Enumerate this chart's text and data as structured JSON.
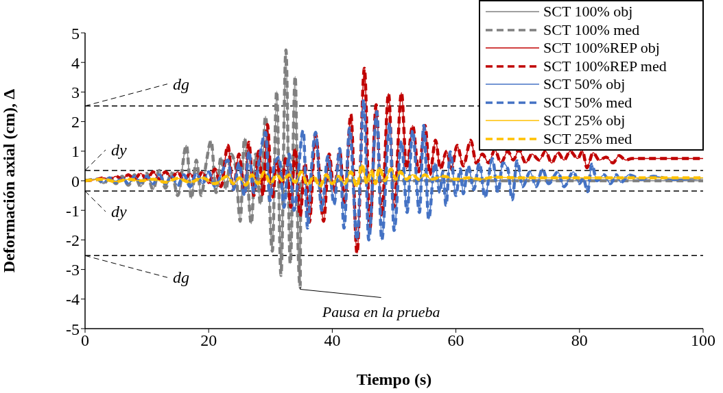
{
  "chart_data": {
    "type": "line",
    "xlabel": "Tiempo (s)",
    "ylabel": "Deformación axial (cm), Δ",
    "xlim": [
      0,
      100
    ],
    "xticks": [
      0,
      20,
      40,
      60,
      80,
      100
    ],
    "ylim": [
      -5,
      5
    ],
    "yticks": [
      -5,
      -4,
      -3,
      -2,
      -1,
      0,
      1,
      2,
      3,
      4,
      5
    ],
    "legend": "top right",
    "series": [
      {
        "name": "SCT 100% obj",
        "color": "#808080",
        "line_style": "solid",
        "x": [
          0,
          2,
          3,
          4,
          5,
          6,
          7,
          8,
          9,
          10,
          11,
          12,
          13,
          14,
          15,
          16.4,
          17.2,
          18,
          18.8,
          19.6,
          20.4,
          21.2,
          22,
          22.8,
          23.6,
          24.4,
          25.1,
          25.8,
          26.9,
          27.6,
          28.4,
          29.2,
          30.3,
          31,
          31.7,
          32.5,
          33.2,
          34,
          34.5,
          34.8,
          34.9,
          100
        ],
        "values": [
          0,
          0.05,
          -0.1,
          0.1,
          -0.1,
          0.15,
          -0.15,
          0.2,
          -0.2,
          0.25,
          -0.3,
          0.35,
          -0.25,
          0.3,
          -0.5,
          1.2,
          -0.6,
          0.7,
          -0.5,
          0.6,
          1.35,
          -0.4,
          0.8,
          -0.3,
          0.9,
          0.4,
          -1.37,
          1.44,
          -1.45,
          0.9,
          -0.8,
          2.18,
          -2.38,
          3.03,
          -3.2,
          4.42,
          -2.8,
          3.53,
          -2.5,
          -3.6,
          0,
          0
        ]
      },
      {
        "name": "SCT 100% med",
        "color": "#808080",
        "line_style": "dashed",
        "x": [
          0,
          2,
          3,
          4,
          5,
          6,
          7,
          8,
          9,
          10,
          11,
          12,
          13,
          14,
          15,
          16.4,
          17.2,
          18,
          18.8,
          19.6,
          20.4,
          21.2,
          22,
          22.8,
          23.6,
          24.4,
          25.1,
          25.8,
          26.9,
          27.6,
          28.4,
          29.2,
          30.3,
          31,
          31.7,
          32.5,
          33.2,
          34,
          34.5,
          34.8,
          34.9,
          100
        ],
        "values": [
          0,
          0.05,
          -0.1,
          0.1,
          -0.1,
          0.15,
          -0.15,
          0.2,
          -0.2,
          0.25,
          -0.3,
          0.35,
          -0.25,
          0.3,
          -0.5,
          1.2,
          -0.6,
          0.7,
          -0.5,
          0.6,
          1.35,
          -0.4,
          0.8,
          -0.3,
          0.9,
          0.4,
          -1.37,
          1.44,
          -1.45,
          0.9,
          -0.8,
          2.18,
          -2.38,
          3.03,
          -3.2,
          4.42,
          -2.8,
          3.53,
          -2.5,
          -3.6,
          0,
          0
        ]
      },
      {
        "name": "SCT 100%REP obj",
        "color": "#c00000",
        "line_style": "solid",
        "x": [
          0,
          2,
          3,
          4,
          5,
          6,
          7,
          8,
          9,
          10,
          11,
          12,
          13,
          14,
          15,
          16,
          17,
          18,
          19,
          20,
          21,
          22,
          23.1,
          24,
          24.9,
          25.8,
          26.5,
          27.3,
          28.1,
          28.8,
          29.5,
          30.3,
          31,
          31.8,
          32.5,
          33.3,
          34,
          34.8,
          35.6,
          36.3,
          37.3,
          38.6,
          39.5,
          40.3,
          41.2,
          42,
          43,
          44,
          45.2,
          46.1,
          47.1,
          48,
          49.1,
          50,
          51.2,
          52,
          53,
          54,
          55,
          55.8,
          56.7,
          57.5,
          58.5,
          59.3,
          60.2,
          61.2,
          62.4,
          63.3,
          64.3,
          65.3,
          66.3,
          67.3,
          68.4,
          69.3,
          70.2,
          71.3,
          72.3,
          73.5,
          74.5,
          75.5,
          76.5,
          77.5,
          78.5,
          79.7,
          80.5,
          81.2,
          82.2,
          83.2,
          84.3,
          85.4,
          86.4,
          87.5,
          88.5,
          100
        ],
        "values": [
          0,
          0.05,
          0.1,
          0.05,
          0.15,
          0.05,
          0.2,
          0.05,
          0.25,
          0.05,
          0.3,
          0.05,
          0.3,
          0.1,
          0.3,
          0,
          0.25,
          0,
          0.3,
          -0.1,
          0.4,
          -0.2,
          1.2,
          -0.3,
          0.9,
          -0.4,
          1.3,
          -0.5,
          1,
          -0.5,
          1.9,
          -0.6,
          0.7,
          -0.2,
          0.8,
          -0.9,
          1.1,
          -1.2,
          0.6,
          -1.4,
          1.56,
          -1.37,
          0.9,
          -0.4,
          1,
          -0.8,
          2.25,
          -2.45,
          3.8,
          -1.6,
          2.57,
          -1.2,
          2.95,
          -0.9,
          2.98,
          0.4,
          1.87,
          0.3,
          1.87,
          0.2,
          1.37,
          0.4,
          1,
          0.4,
          1.2,
          0.5,
          1.37,
          0.6,
          0.9,
          0.6,
          1.05,
          0.6,
          1,
          0.7,
          1.05,
          0.6,
          0.9,
          0.7,
          1,
          0.6,
          0.95,
          0.7,
          1,
          0.75,
          1,
          0.44,
          0.95,
          0.7,
          0.8,
          0.6,
          0.85,
          0.7,
          0.75,
          0.75
        ]
      },
      {
        "name": "SCT 100%REP med",
        "color": "#c00000",
        "line_style": "dashed",
        "x": [
          0,
          2,
          3,
          4,
          5,
          6,
          7,
          8,
          9,
          10,
          11,
          12,
          13,
          14,
          15,
          16,
          17,
          18,
          19,
          20,
          21,
          22,
          23.1,
          24,
          24.9,
          25.8,
          26.5,
          27.3,
          28.1,
          28.8,
          29.5,
          30.3,
          31,
          31.8,
          32.5,
          33.3,
          34,
          34.8,
          35.6,
          36.3,
          37.3,
          38.6,
          39.5,
          40.3,
          41.2,
          42,
          43,
          44,
          45.2,
          46.1,
          47.1,
          48,
          49.1,
          50,
          51.2,
          52,
          53,
          54,
          55,
          55.8,
          56.7,
          57.5,
          58.5,
          59.3,
          60.2,
          61.2,
          62.4,
          63.3,
          64.3,
          65.3,
          66.3,
          67.3,
          68.4,
          69.3,
          70.2,
          71.3,
          72.3,
          73.5,
          74.5,
          75.5,
          76.5,
          77.5,
          78.5,
          79.7,
          80.5,
          81.2,
          82.2,
          83.2,
          84.3,
          85.4,
          86.4,
          87.5,
          88.5,
          100
        ],
        "values": [
          0,
          0.05,
          0.1,
          0.05,
          0.15,
          0.05,
          0.2,
          0.05,
          0.25,
          0.05,
          0.3,
          0.05,
          0.3,
          0.1,
          0.3,
          0,
          0.25,
          0,
          0.3,
          -0.1,
          0.4,
          -0.2,
          1.2,
          -0.3,
          0.9,
          -0.4,
          1.3,
          -0.5,
          1,
          -0.5,
          1.9,
          -0.6,
          0.7,
          -0.2,
          0.8,
          -0.9,
          1.1,
          -1.2,
          0.6,
          -1.4,
          1.56,
          -1.37,
          0.9,
          -0.4,
          1,
          -0.8,
          2.25,
          -2.45,
          3.8,
          -1.6,
          2.57,
          -1.2,
          2.95,
          -0.9,
          2.98,
          0.4,
          1.87,
          0.3,
          1.87,
          0.2,
          1.37,
          0.4,
          1,
          0.4,
          1.2,
          0.5,
          1.37,
          0.6,
          0.9,
          0.6,
          1.05,
          0.6,
          1,
          0.7,
          1.05,
          0.6,
          0.9,
          0.7,
          1,
          0.6,
          0.95,
          0.7,
          1,
          0.75,
          1,
          0.44,
          0.95,
          0.7,
          0.8,
          0.6,
          0.85,
          0.7,
          0.75,
          0.75
        ]
      },
      {
        "name": "SCT 50% obj",
        "color": "#4472c4",
        "line_style": "solid",
        "x": [
          0,
          2,
          3,
          4,
          5,
          6,
          7,
          8,
          9,
          10,
          11,
          12,
          13,
          14,
          15,
          16,
          17,
          18,
          19,
          20,
          21,
          22,
          23.1,
          24,
          24.9,
          25.8,
          26.5,
          27.3,
          28.1,
          29.2,
          29.9,
          30.6,
          31.4,
          32.2,
          33,
          33.8,
          35.3,
          36,
          36.6,
          37.3,
          38.3,
          39.3,
          40.3,
          41.2,
          41.9,
          42.8,
          44,
          45.1,
          45.9,
          47.2,
          48,
          49.3,
          50,
          51.2,
          52.1,
          53,
          54.1,
          54.8,
          55.6,
          56.6,
          57.4,
          57.9,
          58.4,
          59.1,
          60,
          60.7,
          61.2,
          62,
          62.9,
          63.8,
          64.7,
          65.9,
          66.8,
          67.6,
          68.4,
          69.1,
          69.9,
          70.8,
          72,
          73,
          74,
          75,
          76.5,
          77.5,
          79,
          80,
          80.6,
          81.3,
          82,
          82.8,
          84,
          85,
          86,
          86.7,
          88,
          90,
          92,
          95,
          100
        ],
        "values": [
          0,
          0.05,
          -0.05,
          0.1,
          -0.05,
          0.1,
          -0.1,
          0.15,
          -0.05,
          0.15,
          -0.1,
          0.2,
          -0.1,
          0.15,
          -0.15,
          0.2,
          -0.2,
          0.25,
          -0.1,
          0.3,
          -0.2,
          0.2,
          0.7,
          -0.3,
          0.6,
          -0.5,
          1,
          -0.4,
          0.6,
          1.64,
          -0.67,
          0.5,
          0.8,
          -0.9,
          0.9,
          -1,
          1.7,
          -1.6,
          0.3,
          1.64,
          -1,
          0.83,
          -0.8,
          1.09,
          -1.6,
          1.78,
          -2,
          2.75,
          -2,
          2.33,
          -2,
          1.95,
          -1.68,
          1.33,
          -1.07,
          1.7,
          -1.07,
          1.87,
          -1.3,
          0.6,
          -0.4,
          0.3,
          -0.83,
          0.98,
          -0.5,
          0.4,
          -0.44,
          0.5,
          -0.3,
          0.6,
          -0.56,
          0.75,
          -0.4,
          0.6,
          0.4,
          -0.64,
          0.67,
          -0.2,
          0.3,
          -0.2,
          0.4,
          -0.1,
          0.3,
          -0.2,
          0.3,
          -0.1,
          0.1,
          -0.37,
          0.56,
          0,
          0.2,
          -0.1,
          0.2,
          -0.06,
          0.2,
          0.05,
          0.15,
          0.05,
          0.1
        ]
      },
      {
        "name": "SCT 50% med",
        "color": "#4472c4",
        "line_style": "dashed",
        "x": [
          0,
          2,
          3,
          4,
          5,
          6,
          7,
          8,
          9,
          10,
          11,
          12,
          13,
          14,
          15,
          16,
          17,
          18,
          19,
          20,
          21,
          22,
          23.1,
          24,
          24.9,
          25.8,
          26.5,
          27.3,
          28.1,
          29.2,
          29.9,
          30.6,
          31.4,
          32.2,
          33,
          33.8,
          35.3,
          36,
          36.6,
          37.3,
          38.3,
          39.3,
          40.3,
          41.2,
          41.9,
          42.8,
          44,
          45.1,
          45.9,
          47.2,
          48,
          49.3,
          50,
          51.2,
          52.1,
          53,
          54.1,
          54.8,
          55.6,
          56.6,
          57.4,
          57.9,
          58.4,
          59.1,
          60,
          60.7,
          61.2,
          62,
          62.9,
          63.8,
          64.7,
          65.9,
          66.8,
          67.6,
          68.4,
          69.1,
          69.9,
          70.8,
          72,
          73,
          74,
          75,
          76.5,
          77.5,
          79,
          80,
          80.6,
          81.3,
          82,
          82.8,
          84,
          85,
          86,
          86.7,
          88,
          90,
          92,
          95,
          100
        ],
        "values": [
          0,
          0.05,
          -0.05,
          0.1,
          -0.05,
          0.1,
          -0.1,
          0.15,
          -0.05,
          0.15,
          -0.1,
          0.2,
          -0.1,
          0.15,
          -0.15,
          0.2,
          -0.2,
          0.25,
          -0.1,
          0.3,
          -0.2,
          0.2,
          0.7,
          -0.3,
          0.6,
          -0.5,
          1,
          -0.4,
          0.6,
          1.64,
          -0.67,
          0.5,
          0.8,
          -0.9,
          0.9,
          -1,
          1.7,
          -1.6,
          0.3,
          1.64,
          -1,
          0.83,
          -0.8,
          1.09,
          -1.6,
          1.78,
          -2,
          2.75,
          -2,
          2.33,
          -2,
          1.95,
          -1.68,
          1.33,
          -1.07,
          1.7,
          -1.07,
          1.87,
          -1.3,
          0.6,
          -0.4,
          0.3,
          -0.83,
          0.98,
          -0.5,
          0.4,
          -0.44,
          0.5,
          -0.3,
          0.6,
          -0.56,
          0.75,
          -0.4,
          0.6,
          0.4,
          -0.64,
          0.67,
          -0.2,
          0.3,
          -0.2,
          0.4,
          -0.1,
          0.3,
          -0.2,
          0.3,
          -0.1,
          0.1,
          -0.37,
          0.56,
          0,
          0.2,
          -0.1,
          0.2,
          -0.06,
          0.2,
          0.05,
          0.15,
          0.05,
          0.1
        ]
      },
      {
        "name": "SCT 25% obj",
        "color": "#ffc000",
        "line_style": "solid",
        "x": [
          0,
          3,
          5,
          7,
          9,
          11,
          13,
          15,
          17,
          19,
          21,
          23,
          24,
          25,
          26,
          27,
          28,
          29,
          30,
          31,
          32,
          33,
          34,
          35,
          36,
          37,
          38,
          39,
          40,
          41,
          42,
          43,
          44,
          44.8,
          45.6,
          46.3,
          47,
          47.6,
          48.5,
          49.5,
          50.3,
          51,
          52,
          53,
          54,
          55,
          56,
          58,
          60,
          62,
          64,
          66,
          70,
          75,
          80,
          90,
          100
        ],
        "values": [
          0,
          0.05,
          -0.03,
          0.05,
          0,
          0.05,
          -0.05,
          0.08,
          -0.05,
          0.1,
          -0.1,
          0.15,
          -0.1,
          0.1,
          -0.15,
          0.2,
          -0.1,
          0.3,
          -0.1,
          0.2,
          0,
          0.2,
          -0.05,
          0.3,
          -0.15,
          0.15,
          -0.2,
          0.2,
          -0.1,
          0.15,
          -0.1,
          0.3,
          -0.2,
          0.55,
          -0.1,
          0.35,
          -0.1,
          0.45,
          0,
          0.4,
          0.05,
          0.3,
          0.05,
          0.2,
          0.05,
          0.2,
          0.05,
          0.15,
          0.05,
          0.1,
          0.05,
          0.12,
          0.1,
          0.1,
          0.1,
          0.1,
          0.1
        ]
      },
      {
        "name": "SCT 25% med",
        "color": "#ffc000",
        "line_style": "dashed",
        "x": [
          0,
          3,
          5,
          7,
          9,
          11,
          13,
          15,
          17,
          19,
          21,
          23,
          24,
          25,
          26,
          27,
          28,
          29,
          30,
          31,
          32,
          33,
          34,
          35,
          36,
          37,
          38,
          39,
          40,
          41,
          42,
          43,
          44,
          44.8,
          45.6,
          46.3,
          47,
          47.6,
          48.5,
          49.5,
          50.3,
          51,
          52,
          53,
          54,
          55,
          56,
          58,
          60,
          62,
          64,
          66,
          70,
          75,
          80,
          90,
          100
        ],
        "values": [
          0,
          0.05,
          -0.03,
          0.05,
          0,
          0.05,
          -0.05,
          0.08,
          -0.05,
          0.1,
          -0.1,
          0.15,
          -0.1,
          0.1,
          -0.15,
          0.2,
          -0.1,
          0.3,
          -0.1,
          0.2,
          0,
          0.2,
          -0.05,
          0.3,
          -0.15,
          0.15,
          -0.2,
          0.2,
          -0.1,
          0.15,
          -0.1,
          0.3,
          -0.2,
          0.55,
          -0.1,
          0.35,
          -0.1,
          0.45,
          0,
          0.4,
          0.05,
          0.3,
          0.05,
          0.2,
          0.05,
          0.2,
          0.05,
          0.15,
          0.05,
          0.1,
          0.05,
          0.12,
          0.1,
          0.1,
          0.1,
          0.1,
          0.1
        ]
      }
    ],
    "ref_lines": [
      {
        "axis": "y",
        "value": 2.53,
        "label": "dg",
        "color": "#000000",
        "line_style": "dashed"
      },
      {
        "axis": "y",
        "value": 0.35,
        "label": "dy",
        "color": "#000000",
        "line_style": "dashed"
      },
      {
        "axis": "y",
        "value": -0.35,
        "label": "dy",
        "color": "#000000",
        "line_style": "dashed"
      },
      {
        "axis": "y",
        "value": -2.53,
        "label": "dg",
        "color": "#000000",
        "line_style": "dashed"
      }
    ],
    "annotations": [
      {
        "text": "Pausa en la prueba",
        "x": 34.8,
        "y": -3.6
      }
    ]
  }
}
